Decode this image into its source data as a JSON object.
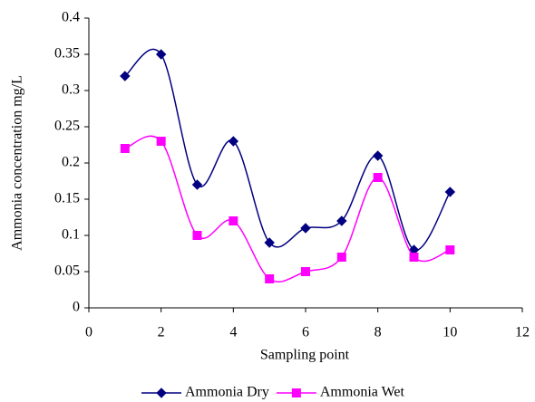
{
  "chart_data": {
    "type": "line",
    "smooth": true,
    "x_label": "Sampling point",
    "y_label": "Ammonia concentration mg/L",
    "xlim": [
      0,
      12
    ],
    "xticks": [
      0,
      2,
      4,
      6,
      8,
      10,
      12
    ],
    "ylim": [
      0,
      0.4
    ],
    "yticks": [
      0,
      0.05,
      0.1,
      0.15,
      0.2,
      0.25,
      0.3,
      0.35,
      0.4
    ],
    "legend": "bottom",
    "series": [
      {
        "name": "Ammonia Dry",
        "color": "#000080",
        "marker": "diamond",
        "x": [
          1,
          2,
          3,
          4,
          5,
          6,
          7,
          8,
          9,
          10
        ],
        "values": [
          0.32,
          0.35,
          0.17,
          0.23,
          0.09,
          0.11,
          0.12,
          0.21,
          0.08,
          0.16
        ]
      },
      {
        "name": "Ammonia Wet",
        "color": "#ff00ff",
        "marker": "square",
        "x": [
          1,
          2,
          3,
          4,
          5,
          6,
          7,
          8,
          9,
          10
        ],
        "values": [
          0.22,
          0.23,
          0.1,
          0.12,
          0.04,
          0.05,
          0.07,
          0.18,
          0.07,
          0.08
        ]
      }
    ]
  }
}
